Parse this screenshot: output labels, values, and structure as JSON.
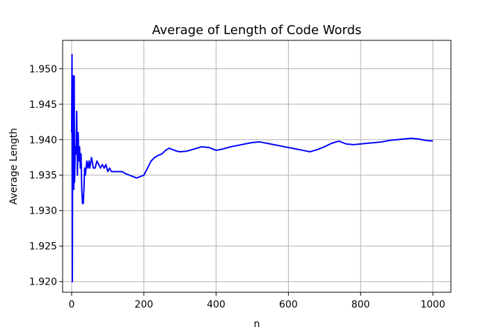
{
  "chart_data": {
    "type": "line",
    "title": "Average of Length of Code Words",
    "xlabel": "n",
    "ylabel": "Average Length",
    "xlim": [
      -25,
      1050
    ],
    "ylim": [
      1.9185,
      1.954
    ],
    "x_ticks": [
      0,
      200,
      400,
      600,
      800,
      1000
    ],
    "x_tick_labels": [
      "0",
      "200",
      "400",
      "600",
      "800",
      "1000"
    ],
    "y_ticks": [
      1.92,
      1.925,
      1.93,
      1.935,
      1.94,
      1.945,
      1.95
    ],
    "y_tick_labels": [
      "1.920",
      "1.925",
      "1.930",
      "1.935",
      "1.940",
      "1.945",
      "1.950"
    ],
    "grid": true,
    "series": [
      {
        "color": "#0000ff",
        "x": [
          0,
          1,
          2,
          3,
          4,
          5,
          6,
          7,
          8,
          9,
          10,
          12,
          14,
          16,
          18,
          20,
          22,
          24,
          26,
          28,
          30,
          32,
          34,
          36,
          38,
          40,
          42,
          45,
          48,
          50,
          55,
          60,
          65,
          70,
          75,
          80,
          85,
          90,
          95,
          100,
          105,
          110,
          120,
          130,
          140,
          150,
          160,
          170,
          180,
          190,
          200,
          210,
          220,
          230,
          240,
          250,
          260,
          270,
          280,
          290,
          300,
          320,
          340,
          360,
          380,
          400,
          420,
          440,
          460,
          480,
          500,
          520,
          540,
          560,
          580,
          600,
          620,
          640,
          660,
          680,
          700,
          720,
          740,
          760,
          780,
          800,
          820,
          840,
          860,
          880,
          900,
          920,
          940,
          960,
          980,
          1000
        ],
        "y": [
          1.941,
          1.952,
          1.92,
          1.949,
          1.945,
          1.938,
          1.933,
          1.949,
          1.934,
          1.936,
          1.939,
          1.938,
          1.944,
          1.935,
          1.941,
          1.937,
          1.939,
          1.936,
          1.938,
          1.933,
          1.931,
          1.931,
          1.933,
          1.936,
          1.935,
          1.936,
          1.937,
          1.936,
          1.937,
          1.936,
          1.9375,
          1.936,
          1.936,
          1.937,
          1.9365,
          1.936,
          1.9365,
          1.936,
          1.9365,
          1.9355,
          1.936,
          1.9355,
          1.9355,
          1.9355,
          1.9355,
          1.9352,
          1.935,
          1.9348,
          1.9346,
          1.9348,
          1.935,
          1.936,
          1.937,
          1.9375,
          1.9378,
          1.938,
          1.9385,
          1.9388,
          1.9386,
          1.9384,
          1.9383,
          1.9384,
          1.9387,
          1.939,
          1.9389,
          1.9385,
          1.9387,
          1.939,
          1.9392,
          1.9394,
          1.9396,
          1.9397,
          1.9395,
          1.9393,
          1.9391,
          1.9389,
          1.9387,
          1.9385,
          1.9383,
          1.9386,
          1.939,
          1.9395,
          1.9398,
          1.9394,
          1.9393,
          1.9394,
          1.9395,
          1.9396,
          1.9397,
          1.9399,
          1.94,
          1.9401,
          1.9402,
          1.9401,
          1.9399,
          1.9398
        ]
      }
    ]
  }
}
